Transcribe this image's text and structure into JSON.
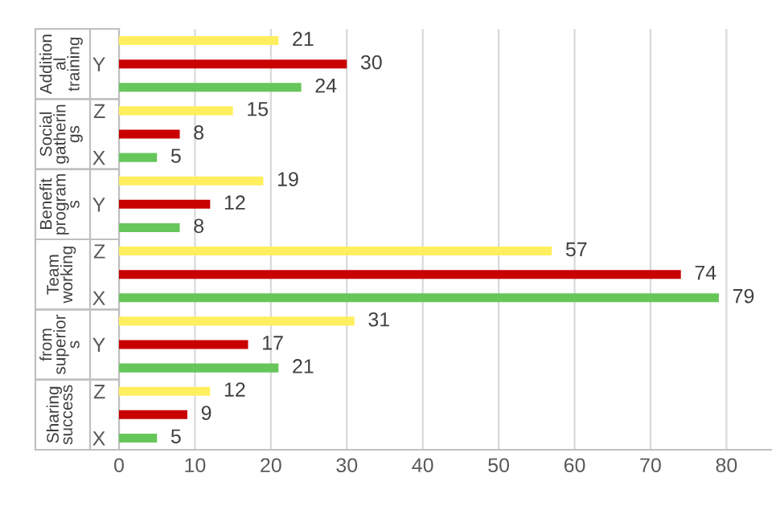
{
  "chart_data": {
    "type": "bar",
    "orientation": "horizontal",
    "categories": [
      null,
      "Y",
      null,
      "Z",
      null,
      "X",
      null,
      "Y",
      null,
      "Z",
      null,
      "X",
      null,
      "Y",
      null,
      "Z",
      null,
      "X"
    ],
    "values": [
      21,
      30,
      24,
      15,
      8,
      5,
      19,
      12,
      8,
      57,
      74,
      79,
      31,
      17,
      21,
      12,
      9,
      5
    ],
    "colors": [
      "#ffef5e",
      "#c80000",
      "#66c65a",
      "#ffef5e",
      "#c80000",
      "#66c65a",
      "#ffef5e",
      "#c80000",
      "#66c65a",
      "#ffef5e",
      "#c80000",
      "#66c65a",
      "#ffef5e",
      "#c80000",
      "#66c65a",
      "#ffef5e",
      "#c80000",
      "#66c65a"
    ],
    "annotations": [
      "Addition\nal\ntraining",
      "Social\ngatherin\ngs",
      "Benefit\nprogram\ns",
      "Team\nworking",
      "from\nsuperior\ns",
      "Sharing\nsuccess"
    ],
    "xlim": [
      0,
      86
    ],
    "xticks": [
      0,
      10,
      20,
      30,
      40,
      50,
      60,
      70,
      80
    ],
    "grid": "x",
    "data_labels": true,
    "legend": false
  }
}
